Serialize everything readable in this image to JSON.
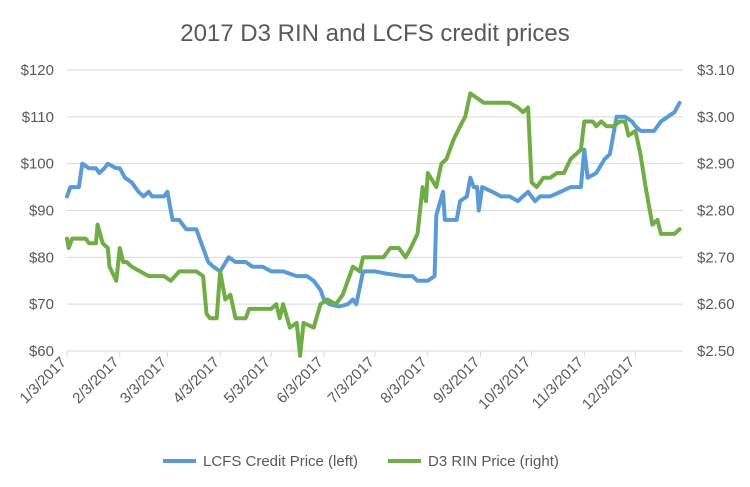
{
  "chart_data": {
    "type": "line",
    "title": "2017 D3 RIN and LCFS credit prices",
    "x_categories": [
      "1/3/2017",
      "2/3/2017",
      "3/3/2017",
      "4/3/2017",
      "5/3/2017",
      "6/3/2017",
      "7/3/2017",
      "8/3/2017",
      "9/3/2017",
      "10/3/2017",
      "11/3/2017",
      "12/3/2017"
    ],
    "y_left": {
      "ticks": [
        "$60",
        "$70",
        "$80",
        "$90",
        "$100",
        "$110",
        "$120"
      ],
      "min": 60,
      "max": 120
    },
    "y_right": {
      "ticks": [
        "$2.50",
        "$2.60",
        "$2.70",
        "$2.80",
        "$2.90",
        "$3.00",
        "$3.10"
      ],
      "min": 2.5,
      "max": 3.1
    },
    "grid": "horizontal",
    "legend_position": "bottom",
    "series": [
      {
        "name": "LCFS Credit Price (left)",
        "axis": "left",
        "color": "#5b9bd5",
        "points": [
          [
            "2017-01-03",
            93
          ],
          [
            "2017-01-05",
            95
          ],
          [
            "2017-01-10",
            95
          ],
          [
            "2017-01-12",
            100
          ],
          [
            "2017-01-16",
            99
          ],
          [
            "2017-01-20",
            99
          ],
          [
            "2017-01-22",
            98
          ],
          [
            "2017-01-25",
            99
          ],
          [
            "2017-01-27",
            100
          ],
          [
            "2017-02-01",
            99
          ],
          [
            "2017-02-03",
            99
          ],
          [
            "2017-02-06",
            97
          ],
          [
            "2017-02-10",
            96
          ],
          [
            "2017-02-14",
            94
          ],
          [
            "2017-02-17",
            93
          ],
          [
            "2017-02-20",
            94
          ],
          [
            "2017-02-22",
            93
          ],
          [
            "2017-03-01",
            93
          ],
          [
            "2017-03-03",
            94
          ],
          [
            "2017-03-06",
            88
          ],
          [
            "2017-03-10",
            88
          ],
          [
            "2017-03-14",
            86
          ],
          [
            "2017-03-20",
            86
          ],
          [
            "2017-03-23",
            83
          ],
          [
            "2017-03-27",
            79
          ],
          [
            "2017-03-30",
            78
          ],
          [
            "2017-04-03",
            77
          ],
          [
            "2017-04-08",
            80
          ],
          [
            "2017-04-12",
            79
          ],
          [
            "2017-04-18",
            79
          ],
          [
            "2017-04-22",
            78
          ],
          [
            "2017-04-28",
            78
          ],
          [
            "2017-05-03",
            77
          ],
          [
            "2017-05-10",
            77
          ],
          [
            "2017-05-18",
            76
          ],
          [
            "2017-05-24",
            76
          ],
          [
            "2017-05-28",
            75
          ],
          [
            "2017-06-01",
            73
          ],
          [
            "2017-06-03",
            71
          ],
          [
            "2017-06-06",
            70
          ],
          [
            "2017-06-12",
            69.5
          ],
          [
            "2017-06-17",
            70
          ],
          [
            "2017-06-20",
            71
          ],
          [
            "2017-06-22",
            70
          ],
          [
            "2017-06-26",
            77
          ],
          [
            "2017-07-03",
            77
          ],
          [
            "2017-07-10",
            76.5
          ],
          [
            "2017-07-20",
            76
          ],
          [
            "2017-07-25",
            76
          ],
          [
            "2017-07-28",
            75
          ],
          [
            "2017-08-03",
            75
          ],
          [
            "2017-08-07",
            76
          ],
          [
            "2017-08-08",
            89
          ],
          [
            "2017-08-12",
            94
          ],
          [
            "2017-08-13",
            88
          ],
          [
            "2017-08-20",
            88
          ],
          [
            "2017-08-22",
            92
          ],
          [
            "2017-08-26",
            93
          ],
          [
            "2017-08-28",
            97
          ],
          [
            "2017-08-30",
            95
          ],
          [
            "2017-09-01",
            95
          ],
          [
            "2017-09-02",
            90
          ],
          [
            "2017-09-04",
            95
          ],
          [
            "2017-09-10",
            94
          ],
          [
            "2017-09-15",
            93
          ],
          [
            "2017-09-20",
            93
          ],
          [
            "2017-09-25",
            92
          ],
          [
            "2017-09-28",
            93
          ],
          [
            "2017-10-01",
            94
          ],
          [
            "2017-10-05",
            92
          ],
          [
            "2017-10-08",
            93
          ],
          [
            "2017-10-14",
            93
          ],
          [
            "2017-10-20",
            94
          ],
          [
            "2017-10-26",
            95
          ],
          [
            "2017-11-01",
            95
          ],
          [
            "2017-11-03",
            103
          ],
          [
            "2017-11-05",
            97
          ],
          [
            "2017-11-10",
            98
          ],
          [
            "2017-11-15",
            101
          ],
          [
            "2017-11-18",
            102
          ],
          [
            "2017-11-22",
            110
          ],
          [
            "2017-11-27",
            110
          ],
          [
            "2017-12-01",
            109
          ],
          [
            "2017-12-03",
            108
          ],
          [
            "2017-12-06",
            107
          ],
          [
            "2017-12-14",
            107
          ],
          [
            "2017-12-18",
            109
          ],
          [
            "2017-12-22",
            110
          ],
          [
            "2017-12-26",
            111
          ],
          [
            "2017-12-29",
            113
          ]
        ]
      },
      {
        "name": "D3 RIN Price (right)",
        "axis": "right",
        "color": "#70ad47",
        "points": [
          [
            "2017-01-03",
            2.74
          ],
          [
            "2017-01-04",
            2.72
          ],
          [
            "2017-01-06",
            2.74
          ],
          [
            "2017-01-14",
            2.74
          ],
          [
            "2017-01-16",
            2.73
          ],
          [
            "2017-01-20",
            2.73
          ],
          [
            "2017-01-21",
            2.77
          ],
          [
            "2017-01-24",
            2.73
          ],
          [
            "2017-01-27",
            2.72
          ],
          [
            "2017-01-28",
            2.68
          ],
          [
            "2017-02-01",
            2.65
          ],
          [
            "2017-02-03",
            2.72
          ],
          [
            "2017-02-05",
            2.69
          ],
          [
            "2017-02-07",
            2.69
          ],
          [
            "2017-02-10",
            2.68
          ],
          [
            "2017-02-15",
            2.67
          ],
          [
            "2017-02-20",
            2.66
          ],
          [
            "2017-02-24",
            2.66
          ],
          [
            "2017-02-27",
            2.66
          ],
          [
            "2017-03-01",
            2.66
          ],
          [
            "2017-03-05",
            2.65
          ],
          [
            "2017-03-10",
            2.67
          ],
          [
            "2017-03-15",
            2.67
          ],
          [
            "2017-03-20",
            2.67
          ],
          [
            "2017-03-24",
            2.66
          ],
          [
            "2017-03-26",
            2.58
          ],
          [
            "2017-03-28",
            2.57
          ],
          [
            "2017-04-01",
            2.57
          ],
          [
            "2017-04-03",
            2.67
          ],
          [
            "2017-04-06",
            2.61
          ],
          [
            "2017-04-09",
            2.62
          ],
          [
            "2017-04-12",
            2.57
          ],
          [
            "2017-04-18",
            2.57
          ],
          [
            "2017-04-20",
            2.59
          ],
          [
            "2017-04-28",
            2.59
          ],
          [
            "2017-05-03",
            2.59
          ],
          [
            "2017-05-06",
            2.6
          ],
          [
            "2017-05-08",
            2.57
          ],
          [
            "2017-05-10",
            2.6
          ],
          [
            "2017-05-14",
            2.55
          ],
          [
            "2017-05-18",
            2.56
          ],
          [
            "2017-05-20",
            2.49
          ],
          [
            "2017-05-22",
            2.56
          ],
          [
            "2017-05-28",
            2.55
          ],
          [
            "2017-06-01",
            2.6
          ],
          [
            "2017-06-05",
            2.61
          ],
          [
            "2017-06-10",
            2.6
          ],
          [
            "2017-06-14",
            2.62
          ],
          [
            "2017-06-20",
            2.68
          ],
          [
            "2017-06-24",
            2.67
          ],
          [
            "2017-06-26",
            2.7
          ],
          [
            "2017-07-03",
            2.7
          ],
          [
            "2017-07-08",
            2.7
          ],
          [
            "2017-07-12",
            2.72
          ],
          [
            "2017-07-17",
            2.72
          ],
          [
            "2017-07-21",
            2.7
          ],
          [
            "2017-07-24",
            2.72
          ],
          [
            "2017-07-28",
            2.75
          ],
          [
            "2017-07-31",
            2.85
          ],
          [
            "2017-08-02",
            2.82
          ],
          [
            "2017-08-03",
            2.88
          ],
          [
            "2017-08-08",
            2.85
          ],
          [
            "2017-08-11",
            2.9
          ],
          [
            "2017-08-14",
            2.91
          ],
          [
            "2017-08-18",
            2.95
          ],
          [
            "2017-08-22",
            2.98
          ],
          [
            "2017-08-25",
            3.0
          ],
          [
            "2017-08-28",
            3.05
          ],
          [
            "2017-09-01",
            3.04
          ],
          [
            "2017-09-05",
            3.03
          ],
          [
            "2017-09-10",
            3.03
          ],
          [
            "2017-09-15",
            3.03
          ],
          [
            "2017-09-20",
            3.03
          ],
          [
            "2017-09-25",
            3.02
          ],
          [
            "2017-09-28",
            3.01
          ],
          [
            "2017-10-01",
            3.02
          ],
          [
            "2017-10-03",
            2.86
          ],
          [
            "2017-10-06",
            2.85
          ],
          [
            "2017-10-10",
            2.87
          ],
          [
            "2017-10-14",
            2.87
          ],
          [
            "2017-10-18",
            2.88
          ],
          [
            "2017-10-22",
            2.88
          ],
          [
            "2017-10-26",
            2.91
          ],
          [
            "2017-11-01",
            2.93
          ],
          [
            "2017-11-03",
            2.99
          ],
          [
            "2017-11-08",
            2.99
          ],
          [
            "2017-11-10",
            2.98
          ],
          [
            "2017-11-13",
            2.99
          ],
          [
            "2017-11-16",
            2.98
          ],
          [
            "2017-11-20",
            2.98
          ],
          [
            "2017-11-24",
            2.99
          ],
          [
            "2017-11-27",
            2.99
          ],
          [
            "2017-11-29",
            2.96
          ],
          [
            "2017-12-03",
            2.97
          ],
          [
            "2017-12-06",
            2.92
          ],
          [
            "2017-12-09",
            2.85
          ],
          [
            "2017-12-13",
            2.77
          ],
          [
            "2017-12-16",
            2.78
          ],
          [
            "2017-12-18",
            2.75
          ],
          [
            "2017-12-26",
            2.75
          ],
          [
            "2017-12-29",
            2.76
          ]
        ]
      }
    ]
  }
}
